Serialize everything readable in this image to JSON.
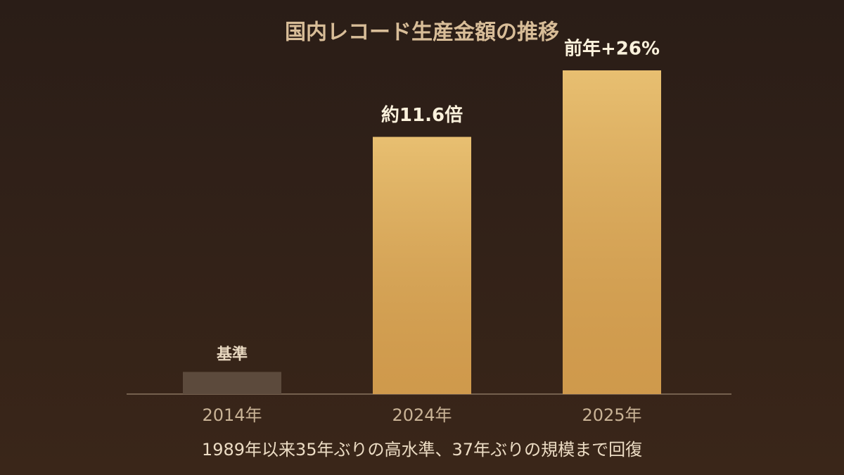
{
  "chart_data": {
    "type": "bar",
    "title": "国内レコード生産金額の推移",
    "categories": [
      "2014年",
      "2024年",
      "2025年"
    ],
    "values": [
      1,
      11.6,
      14.6
    ],
    "annotations": [
      "基準",
      "約11.6倍",
      "前年+26%"
    ],
    "colors": [
      "#5c4a3c",
      "#dea956",
      "#dea956"
    ],
    "ylim": [
      0,
      14.6
    ],
    "caption": "1989年以来35年ぶりの高水準、37年ぶりの規模まで回復"
  }
}
